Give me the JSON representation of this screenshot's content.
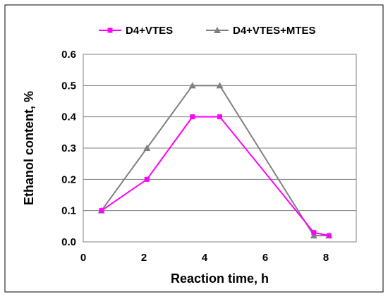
{
  "chart_data": {
    "type": "line",
    "title": "",
    "xlabel": "Reaction time, h",
    "ylabel": "Ethanol content, %",
    "xlim": [
      0,
      9
    ],
    "ylim": [
      0,
      0.6
    ],
    "xticks": [
      "0",
      "2",
      "4",
      "6",
      "8"
    ],
    "yticks": [
      "0.0",
      "0.1",
      "0.2",
      "0.3",
      "0.4",
      "0.5",
      "0.6"
    ],
    "grid": "horizontal",
    "legend_position": "top",
    "series": [
      {
        "name": "D4+VTES",
        "color": "#ff00ff",
        "marker": "square",
        "x": [
          0.6,
          2.1,
          3.6,
          4.5,
          7.6,
          8.1
        ],
        "y": [
          0.1,
          0.2,
          0.4,
          0.4,
          0.03,
          0.02
        ]
      },
      {
        "name": "D4+VTES+MTES",
        "color": "#808080",
        "marker": "triangle",
        "x": [
          0.6,
          2.1,
          3.6,
          4.5,
          7.6,
          8.1
        ],
        "y": [
          0.1,
          0.3,
          0.5,
          0.5,
          0.02,
          0.02
        ]
      }
    ]
  }
}
